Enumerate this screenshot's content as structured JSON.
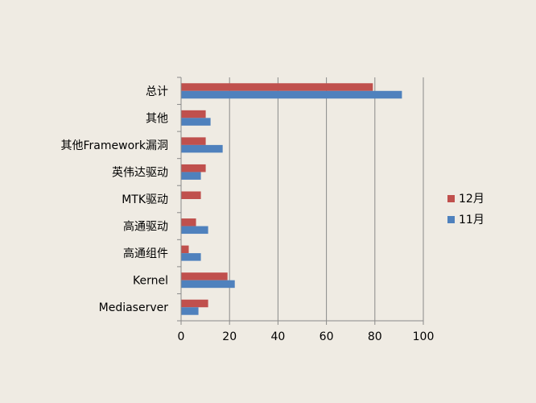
{
  "chart_data": {
    "type": "bar",
    "orientation": "horizontal",
    "categories": [
      "总计",
      "其他",
      "其他Framework漏洞",
      "英伟达驱动",
      "MTK驱动",
      "高通驱动",
      "高通组件",
      "Kernel",
      "Mediaserver"
    ],
    "series": [
      {
        "name": "12月",
        "color": "#c0504d",
        "values": [
          79,
          10,
          10,
          10,
          8,
          6,
          3,
          19,
          11
        ]
      },
      {
        "name": "11月",
        "color": "#4f81bd",
        "values": [
          91,
          12,
          17,
          8,
          0,
          11,
          8,
          22,
          7
        ]
      }
    ],
    "xlim": [
      0,
      100
    ],
    "x_ticks": [
      "0",
      "20",
      "40",
      "60",
      "80",
      "100"
    ],
    "grid": true,
    "legend_position": "right"
  }
}
